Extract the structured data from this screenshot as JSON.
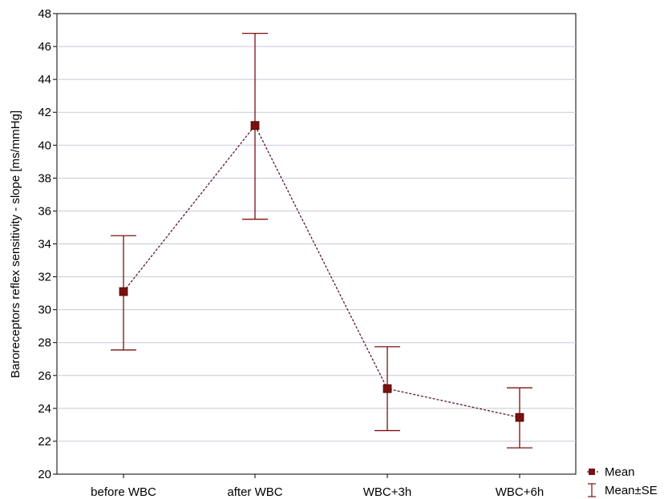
{
  "chart_data": {
    "type": "line",
    "categories": [
      "before WBC",
      "after WBC",
      "WBC+3h",
      "WBC+6h"
    ],
    "series": [
      {
        "name": "Mean",
        "values": [
          31.1,
          41.2,
          25.2,
          23.45
        ]
      }
    ],
    "error_bars": {
      "name": "Mean±SE",
      "lower": [
        27.55,
        35.5,
        22.65,
        21.6
      ],
      "upper": [
        34.5,
        46.8,
        27.75,
        25.25
      ]
    },
    "ylabel": "Baroreceptors reflex sensitivity - slope [ms/mmHg]",
    "xlabel": "",
    "ylim": [
      20,
      48
    ],
    "yticks": [
      20,
      22,
      24,
      26,
      28,
      30,
      32,
      34,
      36,
      38,
      40,
      42,
      44,
      46,
      48
    ],
    "grid": true,
    "legend_position": "bottom-right",
    "colors": {
      "series": "#7b1010",
      "line": "#5a1a2a",
      "grid": "#c8c8d8",
      "axis": "#000000"
    }
  }
}
